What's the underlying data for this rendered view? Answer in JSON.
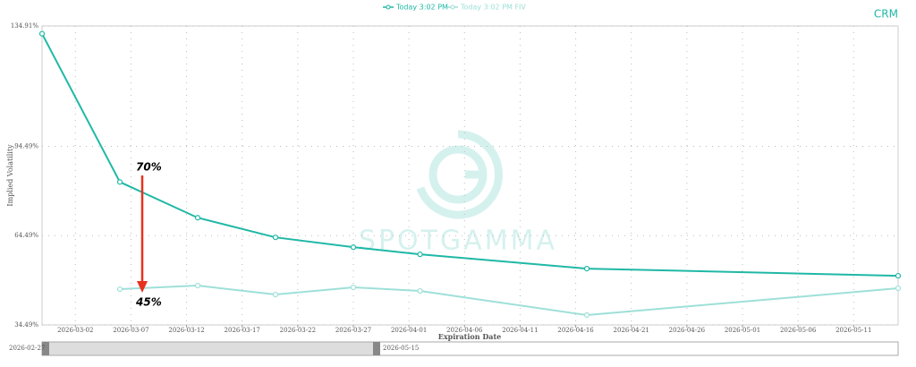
{
  "watermark": "SPOTGAMMA",
  "chart_data": {
    "type": "line",
    "title": "CRM",
    "y_label": "Implied Volatility",
    "x_label": "Expiration Date",
    "annotations": [
      "70%",
      "45%"
    ],
    "x": [
      "2026-02-27",
      "2026-03-06",
      "2026-03-13",
      "2026-03-20",
      "2026-03-27",
      "2026-04-02",
      "2026-04-17",
      "2026-05-15"
    ],
    "series": [
      {
        "name": "Today 3:02 PM",
        "color": "#1fb8a6",
        "values": [
          132.3,
          82.5,
          70.5,
          63.9,
          60.6,
          58.2,
          53.4,
          51.0
        ]
      },
      {
        "name": "Today 3:02 PM FIV",
        "color": "#9ee0d8",
        "values": [
          null,
          46.5,
          47.7,
          44.7,
          47.1,
          45.9,
          37.8,
          46.8
        ]
      }
    ],
    "xlim": [
      "2026-02-27",
      "2026-05-15"
    ],
    "xticks": [
      "2026-03-02",
      "2026-03-07",
      "2026-03-12",
      "2026-03-17",
      "2026-03-22",
      "2026-03-27",
      "2026-04-01",
      "2026-04-06",
      "2026-04-11",
      "2026-04-16",
      "2026-04-21",
      "2026-04-26",
      "2026-05-01",
      "2026-05-06",
      "2026-05-11"
    ],
    "ylim": [
      34.49,
      134.91
    ],
    "yticks": [
      {
        "value": 34.49,
        "label": "34.49%"
      },
      {
        "value": 64.49,
        "label": "64.49%"
      },
      {
        "value": 94.49,
        "label": "94.49%"
      },
      {
        "value": 134.91,
        "label": "134.91%"
      }
    ],
    "grid": true
  }
}
